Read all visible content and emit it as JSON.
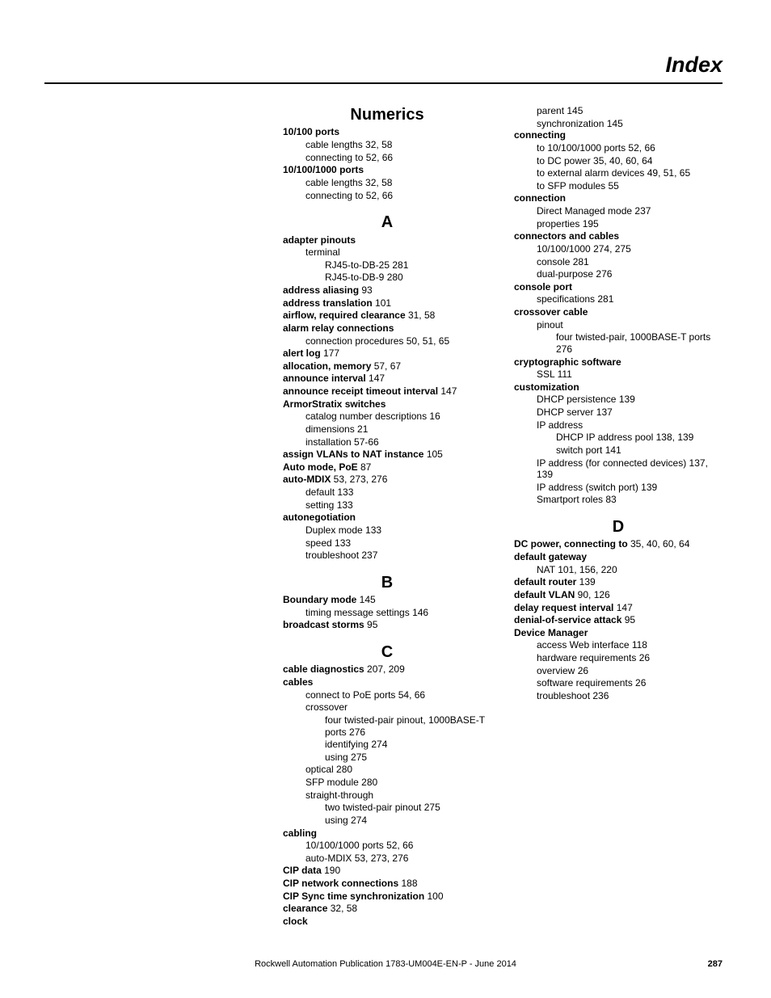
{
  "page": {
    "title": "Index",
    "footer_text": "Rockwell Automation Publication 1783-UM004E-EN-P - June 2014",
    "page_number": "287"
  },
  "index_sections": [
    {
      "letter": "Numerics",
      "first": true,
      "entries": [
        {
          "term": "10/100 ports",
          "bold": true,
          "children": [
            {
              "term": "cable lengths",
              "pages": "32, 58"
            },
            {
              "term": "connecting to",
              "pages": "52, 66"
            }
          ]
        },
        {
          "term": "10/100/1000 ports",
          "bold": true,
          "children": [
            {
              "term": "cable lengths",
              "pages": "32, 58"
            },
            {
              "term": "connecting to",
              "pages": "52, 66"
            }
          ]
        }
      ]
    },
    {
      "letter": "A",
      "entries": [
        {
          "term": "adapter pinouts",
          "bold": true,
          "children": [
            {
              "term": "terminal",
              "children": [
                {
                  "term": "RJ45-to-DB-25",
                  "pages": "281"
                },
                {
                  "term": "RJ45-to-DB-9",
                  "pages": "280"
                }
              ]
            }
          ]
        },
        {
          "term": "address aliasing",
          "bold": true,
          "pages": "93"
        },
        {
          "term": "address translation",
          "bold": true,
          "pages": "101"
        },
        {
          "term": "airflow, required clearance",
          "bold": true,
          "pages": "31, 58"
        },
        {
          "term": "alarm relay connections",
          "bold": true,
          "children": [
            {
              "term": "connection procedures",
              "pages": "50, 51, 65"
            }
          ]
        },
        {
          "term": "alert log",
          "bold": true,
          "pages": "177"
        },
        {
          "term": "allocation, memory",
          "bold": true,
          "pages": "57, 67"
        },
        {
          "term": "announce interval",
          "bold": true,
          "pages": "147"
        },
        {
          "term": "announce receipt timeout interval",
          "bold": true,
          "pages": "147"
        },
        {
          "term": "ArmorStratix switches",
          "bold": true,
          "children": [
            {
              "term": "catalog number descriptions",
              "pages": "16"
            },
            {
              "term": "dimensions",
              "pages": "21"
            },
            {
              "term": "installation",
              "pages": "57-66"
            }
          ]
        },
        {
          "term": "assign VLANs to NAT instance",
          "bold": true,
          "pages": "105"
        },
        {
          "term": "Auto mode, PoE",
          "bold": true,
          "pages": "87"
        },
        {
          "term": "auto-MDIX",
          "bold": true,
          "pages": "53, 273, 276",
          "children": [
            {
              "term": "default",
              "pages": "133"
            },
            {
              "term": "setting",
              "pages": "133"
            }
          ]
        },
        {
          "term": "autonegotiation",
          "bold": true,
          "children": [
            {
              "term": "Duplex mode",
              "pages": "133"
            },
            {
              "term": "speed",
              "pages": "133"
            },
            {
              "term": "troubleshoot",
              "pages": "237"
            }
          ]
        }
      ]
    },
    {
      "letter": "B",
      "entries": [
        {
          "term": "Boundary mode",
          "bold": true,
          "pages": "145",
          "children": [
            {
              "term": "timing message settings",
              "pages": "146"
            }
          ]
        },
        {
          "term": "broadcast storms",
          "bold": true,
          "pages": "95"
        }
      ]
    },
    {
      "letter": "C",
      "column_hint": "split",
      "entries": [
        {
          "term": "cable diagnostics",
          "bold": true,
          "pages": "207, 209"
        },
        {
          "term": "cables",
          "bold": true,
          "children": [
            {
              "term": "connect to PoE ports",
              "pages": "54, 66"
            },
            {
              "term": "crossover",
              "children": [
                {
                  "term": "four twisted-pair pinout, 1000BASE-T ports",
                  "pages": "276"
                },
                {
                  "term": "identifying",
                  "pages": "274"
                },
                {
                  "term": "using",
                  "pages": "275"
                }
              ]
            },
            {
              "term": "optical",
              "pages": "280"
            },
            {
              "term": "SFP module",
              "pages": "280"
            },
            {
              "term": "straight-through",
              "children": [
                {
                  "term": "two twisted-pair pinout",
                  "pages": "275"
                },
                {
                  "term": "using",
                  "pages": "274"
                }
              ]
            }
          ]
        },
        {
          "term": "cabling",
          "bold": true,
          "children": [
            {
              "term": "10/100/1000 ports",
              "pages": "52, 66"
            },
            {
              "term": "auto-MDIX",
              "pages": "53, 273, 276"
            }
          ]
        },
        {
          "term": "CIP data",
          "bold": true,
          "pages": "190"
        },
        {
          "term": "CIP network connections",
          "bold": true,
          "pages": "188"
        },
        {
          "term": "CIP Sync time synchronization",
          "bold": true,
          "pages": "100"
        },
        {
          "term": "clearance",
          "bold": true,
          "pages": "32, 58"
        },
        {
          "term": "clock",
          "bold": true,
          "children": [
            {
              "term": "parent",
              "pages": "145"
            },
            {
              "term": "synchronization",
              "pages": "145"
            }
          ]
        },
        {
          "term": "connecting",
          "bold": true,
          "children": [
            {
              "term": "to 10/100/1000 ports",
              "pages": "52, 66"
            },
            {
              "term": "to DC power",
              "pages": "35, 40, 60, 64"
            },
            {
              "term": "to external alarm devices",
              "pages": "49, 51, 65"
            },
            {
              "term": "to SFP modules",
              "pages": "55"
            }
          ]
        },
        {
          "term": "connection",
          "bold": true,
          "children": [
            {
              "term": "Direct Managed mode",
              "pages": "237"
            },
            {
              "term": "properties",
              "pages": "195"
            }
          ]
        },
        {
          "term": "connectors and cables",
          "bold": true,
          "children": [
            {
              "term": "10/100/1000",
              "pages": "274, 275"
            },
            {
              "term": "console",
              "pages": "281"
            },
            {
              "term": "dual-purpose",
              "pages": "276"
            }
          ]
        },
        {
          "term": "console port",
          "bold": true,
          "children": [
            {
              "term": "specifications",
              "pages": "281"
            }
          ]
        },
        {
          "term": "crossover cable",
          "bold": true,
          "children": [
            {
              "term": "pinout",
              "children": [
                {
                  "term": "four twisted-pair, 1000BASE-T ports",
                  "pages": "276"
                }
              ]
            }
          ]
        },
        {
          "term": "cryptographic software",
          "bold": true,
          "children": [
            {
              "term": "SSL",
              "pages": "111"
            }
          ]
        },
        {
          "term": "customization",
          "bold": true,
          "children": [
            {
              "term": "DHCP persistence",
              "pages": "139"
            },
            {
              "term": "DHCP server",
              "pages": "137"
            },
            {
              "term": "IP address",
              "children": [
                {
                  "term": "DHCP IP address pool",
                  "pages": "138, 139"
                },
                {
                  "term": "switch port",
                  "pages": "141"
                }
              ]
            },
            {
              "term": "IP address (for connected devices)",
              "pages": "137, 139"
            },
            {
              "term": "IP address (switch port)",
              "pages": "139"
            },
            {
              "term": "Smartport roles",
              "pages": "83"
            }
          ]
        }
      ]
    },
    {
      "letter": "D",
      "entries": [
        {
          "term": "DC power, connecting to",
          "bold": true,
          "pages": "35, 40, 60, 64"
        },
        {
          "term": "default gateway",
          "bold": true,
          "children": [
            {
              "term": "NAT",
              "pages": "101, 156, 220"
            }
          ]
        },
        {
          "term": "default router",
          "bold": true,
          "pages": "139"
        },
        {
          "term": "default VLAN",
          "bold": true,
          "pages": "90, 126"
        },
        {
          "term": "delay request interval",
          "bold": true,
          "pages": "147"
        },
        {
          "term": "denial-of-service attack",
          "bold": true,
          "pages": "95"
        },
        {
          "term": "Device Manager",
          "bold": true,
          "children": [
            {
              "term": "access Web interface",
              "pages": "118"
            },
            {
              "term": "hardware requirements",
              "pages": "26"
            },
            {
              "term": "overview",
              "pages": "26"
            },
            {
              "term": "software requirements",
              "pages": "26"
            },
            {
              "term": "troubleshoot",
              "pages": "236"
            }
          ]
        }
      ]
    }
  ]
}
